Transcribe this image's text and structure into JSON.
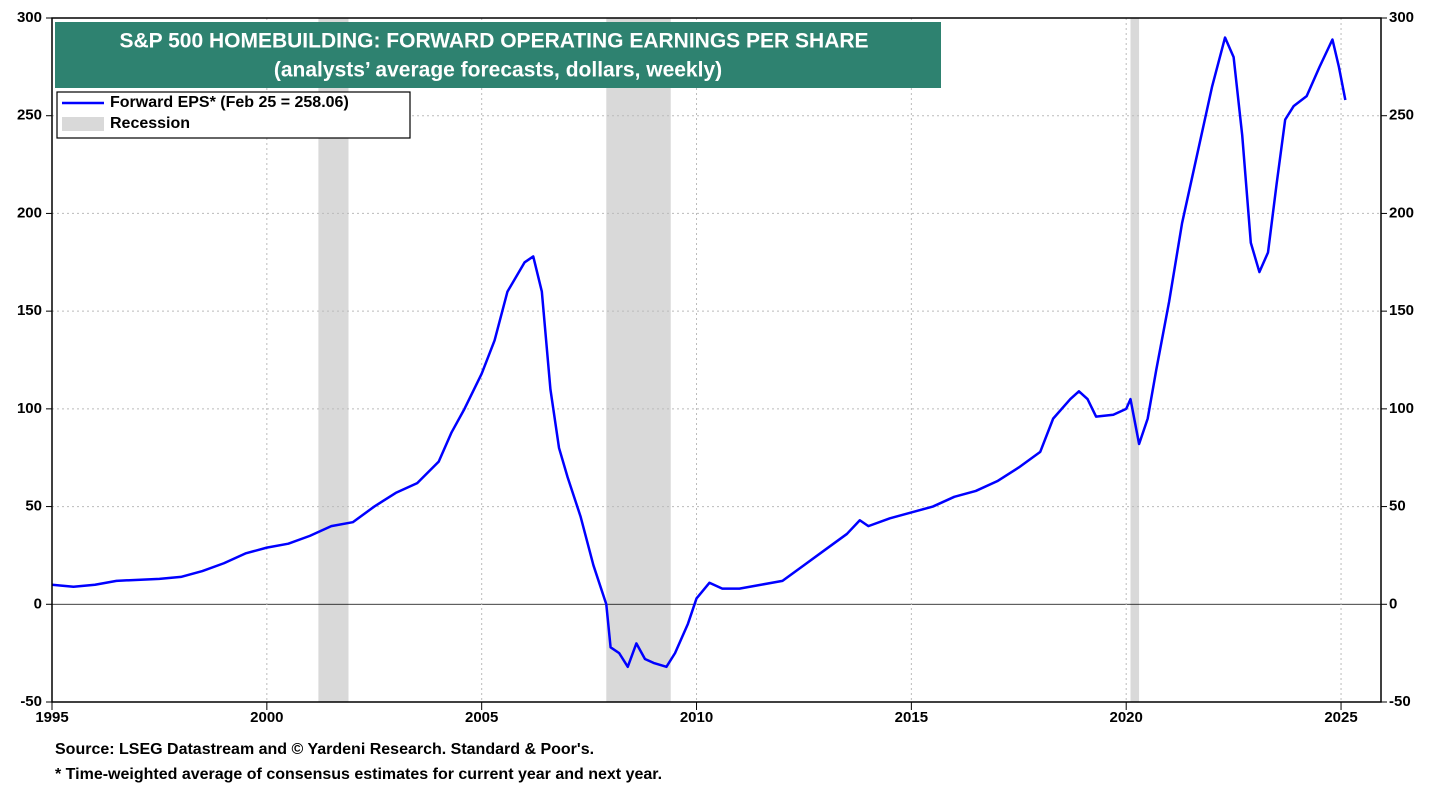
{
  "chart_data": {
    "type": "line",
    "title": "S&P 500 HOMEBUILDING: FORWARD OPERATING EARNINGS PER SHARE",
    "subtitle": "(analysts’ average forecasts, dollars, weekly)",
    "source": "Source: LSEG Datastream and © Yardeni Research. Standard & Poor's.",
    "note": "* Time-weighted average of consensus estimates for current year and next year.",
    "x": [
      1995,
      1995.5,
      1996,
      1996.5,
      1997,
      1997.5,
      1998,
      1998.5,
      1999,
      1999.5,
      2000,
      2000.5,
      2001,
      2001.5,
      2002,
      2002.5,
      2003,
      2003.5,
      2004,
      2004.3,
      2004.6,
      2005,
      2005.3,
      2005.6,
      2006,
      2006.2,
      2006.4,
      2006.6,
      2006.8,
      2007,
      2007.3,
      2007.6,
      2007.9,
      2008,
      2008.2,
      2008.4,
      2008.6,
      2008.8,
      2009,
      2009.3,
      2009.5,
      2009.8,
      2010,
      2010.3,
      2010.6,
      2011,
      2011.5,
      2012,
      2012.5,
      2013,
      2013.5,
      2013.8,
      2014,
      2014.5,
      2015,
      2015.5,
      2016,
      2016.5,
      2017,
      2017.5,
      2018,
      2018.3,
      2018.7,
      2018.9,
      2019.1,
      2019.3,
      2019.7,
      2020,
      2020.1,
      2020.3,
      2020.5,
      2020.7,
      2021,
      2021.3,
      2021.6,
      2021.8,
      2022,
      2022.3,
      2022.5,
      2022.7,
      2022.9,
      2023.1,
      2023.3,
      2023.5,
      2023.7,
      2023.9,
      2024.2,
      2024.5,
      2024.8,
      2024.95,
      2025.1
    ],
    "series": [
      {
        "name": "Forward EPS* (Feb 25 = 258.06)",
        "color": "#0000ff",
        "values": [
          10,
          9,
          10,
          12,
          12.5,
          13,
          14,
          17,
          21,
          26,
          29,
          31,
          35,
          40,
          42,
          50,
          57,
          62,
          73,
          88,
          100,
          118,
          135,
          160,
          175,
          178,
          160,
          110,
          80,
          65,
          45,
          20,
          0,
          -22,
          -25,
          -32,
          -20,
          -28,
          -30,
          -32,
          -25,
          -10,
          3,
          11,
          8,
          8,
          10,
          12,
          20,
          28,
          36,
          43,
          40,
          44,
          47,
          50,
          55,
          58,
          63,
          70,
          78,
          95,
          105,
          109,
          105,
          96,
          97,
          100,
          105,
          82,
          95,
          120,
          155,
          195,
          225,
          245,
          265,
          290,
          280,
          240,
          185,
          170,
          180,
          215,
          248,
          255,
          260,
          275,
          289,
          275,
          258.06
        ]
      }
    ],
    "recessions": {
      "name": "Recession",
      "color": "#d9d9d9",
      "spans": [
        [
          2001.2,
          2001.9
        ],
        [
          2007.9,
          2009.4
        ],
        [
          2020.1,
          2020.3
        ]
      ]
    },
    "xlim": [
      1995,
      2025.93
    ],
    "xticks": [
      1995,
      2000,
      2005,
      2010,
      2015,
      2020,
      2025
    ],
    "ylim": [
      -50,
      300
    ],
    "yticks": [
      -50,
      0,
      50,
      100,
      150,
      200,
      250,
      300
    ],
    "grid": true
  }
}
